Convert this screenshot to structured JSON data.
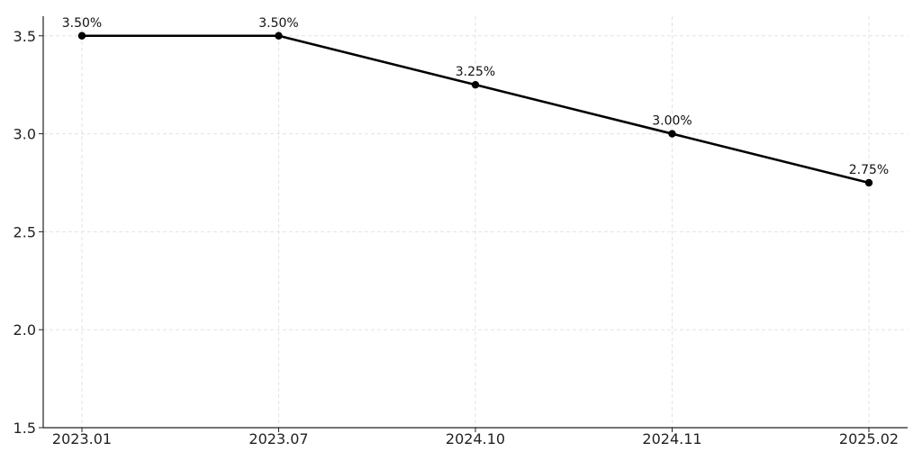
{
  "chart_data": {
    "type": "line",
    "title": "",
    "xlabel": "",
    "ylabel": "",
    "categories": [
      "2023.01",
      "2023.07",
      "2024.10",
      "2024.11",
      "2025.02"
    ],
    "series": [
      {
        "values": [
          3.5,
          3.5,
          3.25,
          3.0,
          2.75
        ],
        "labels": [
          "3.50%",
          "3.50%",
          "3.25%",
          "3.00%",
          "2.75%"
        ],
        "color": "#000000"
      }
    ],
    "ylim": [
      1.5,
      3.6
    ],
    "yticks": [
      1.5,
      2.0,
      2.5,
      3.0,
      3.5
    ],
    "ytick_labels": [
      "1.5",
      "2.0",
      "2.5",
      "3.0",
      "3.5"
    ],
    "grid": true,
    "marker": "circle"
  }
}
